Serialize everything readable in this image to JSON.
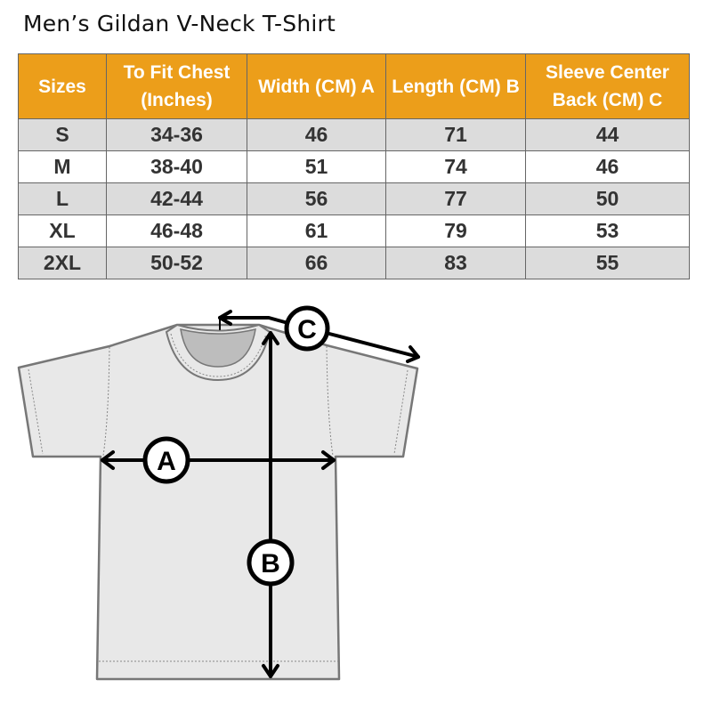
{
  "title": "Men’s Gildan V-Neck T-Shirt",
  "colors": {
    "header": "#EC9E1A",
    "row_shaded": "#dcdcdc",
    "shirt": "#e8e8e8"
  },
  "table": {
    "headers": [
      "Sizes",
      "To Fit Chest (Inches)",
      "Width (CM) A",
      "Length  (CM) B",
      "Sleeve Center Back (CM) C"
    ],
    "rows": [
      [
        "S",
        "34-36",
        "46",
        "71",
        "44"
      ],
      [
        "M",
        "38-40",
        "51",
        "74",
        "46"
      ],
      [
        "L",
        "42-44",
        "56",
        "77",
        "50"
      ],
      [
        "XL",
        "46-48",
        "61",
        "79",
        "53"
      ],
      [
        "2XL",
        "50-52",
        "66",
        "83",
        "55"
      ]
    ]
  },
  "diagram": {
    "labels": {
      "a": "A",
      "b": "B",
      "c": "C"
    }
  }
}
